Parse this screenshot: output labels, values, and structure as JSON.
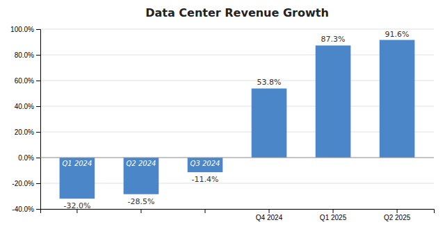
{
  "chart_data": {
    "type": "bar",
    "title": "Data Center Revenue Growth",
    "categories": [
      "Q1 2024",
      "Q2 2024",
      "Q3 2024",
      "Q4 2024",
      "Q1 2025",
      "Q2 2025"
    ],
    "values": [
      -32.0,
      -28.5,
      -11.4,
      53.8,
      87.3,
      91.6
    ],
    "value_labels": [
      "-32.0%",
      "-28.5%",
      "-11.4%",
      "53.8%",
      "87.3%",
      "91.6%"
    ],
    "color": "#4a86c8",
    "ylim": [
      -40,
      100
    ],
    "yticks": [
      {
        "value": -40.0,
        "label": "-40.0%"
      },
      {
        "value": -20.0,
        "label": "-20.0%"
      },
      {
        "value": 0.0,
        "label": "0.0%"
      },
      {
        "value": 20.0,
        "label": "20.0%"
      },
      {
        "value": 40.0,
        "label": "40.0%"
      },
      {
        "value": 60.0,
        "label": "60.0%"
      },
      {
        "value": 80.0,
        "label": "80.0%"
      },
      {
        "value": 100.0,
        "label": "100.0%"
      }
    ],
    "grid": true,
    "data_labels": true
  }
}
